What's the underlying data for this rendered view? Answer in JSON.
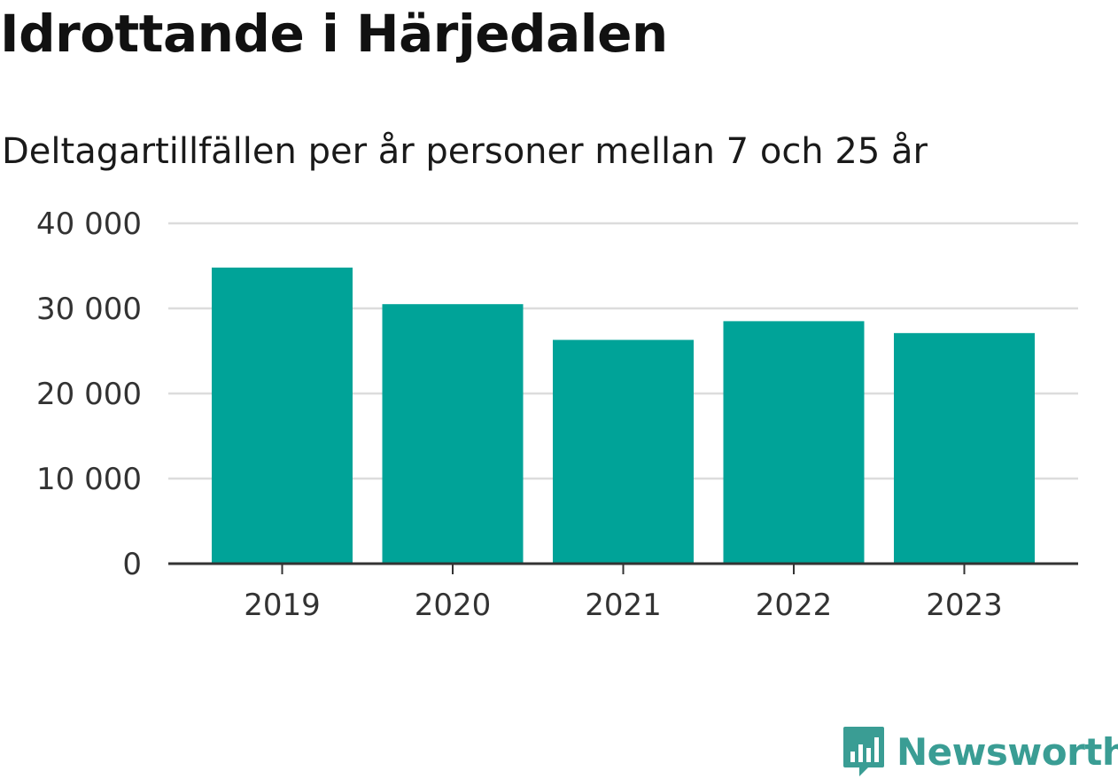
{
  "chart_data": {
    "type": "bar",
    "title": "Idrottande i Härjedalen",
    "subtitle": "Deltagartillfällen per år personer mellan 7 och 25 år",
    "categories": [
      "2019",
      "2020",
      "2021",
      "2022",
      "2023"
    ],
    "values": [
      34800,
      30500,
      26300,
      28500,
      27100
    ],
    "ylim": [
      0,
      40000
    ],
    "yticks": [
      0,
      10000,
      20000,
      30000,
      40000
    ],
    "ytick_labels": [
      "0",
      "10 000",
      "20 000",
      "30 000",
      "40 000"
    ],
    "grid": true,
    "bar_color": "#00a398"
  },
  "branding": {
    "logo_text": "Newsworthy",
    "logo_color": "#3a9d94",
    "icon": "bar-chart-speech-bubble-icon"
  }
}
